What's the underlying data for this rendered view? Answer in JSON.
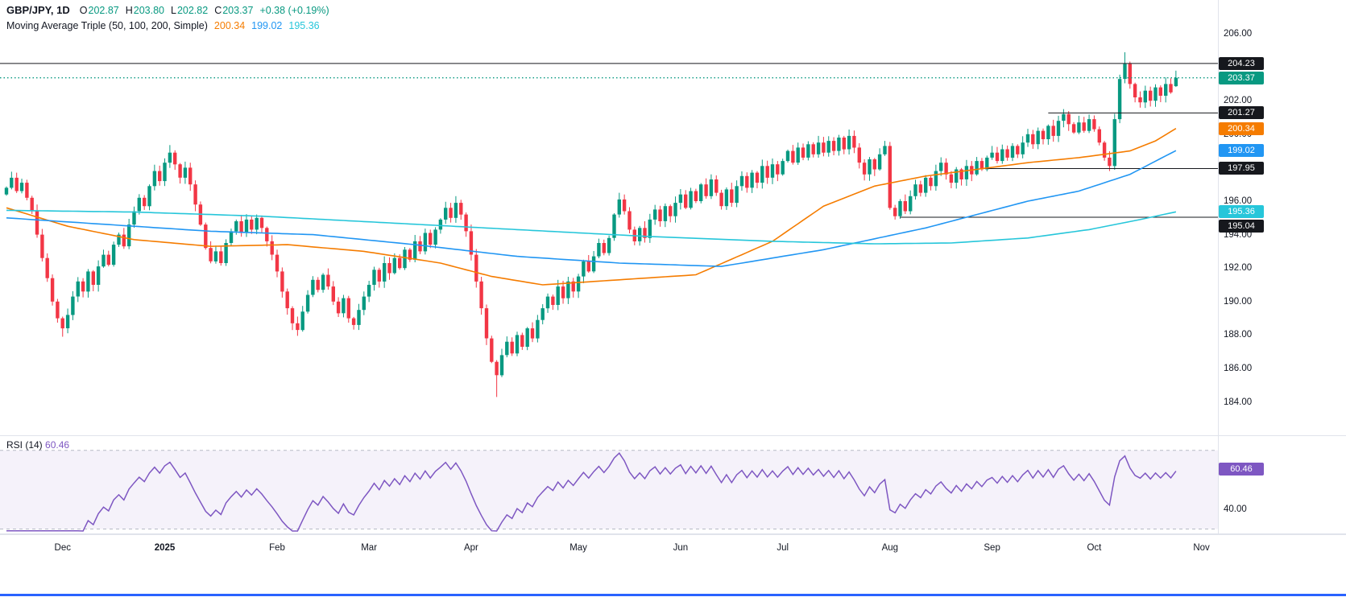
{
  "header": {
    "symbol": "GBP/JPY, 1D",
    "ohlc": {
      "open_label": "O",
      "open": "202.87",
      "high_label": "H",
      "high": "203.80",
      "low_label": "L",
      "low": "202.82",
      "close_label": "C",
      "close": "203.37",
      "change": "+0.38 (+0.19%)"
    },
    "indicator": {
      "name": "Moving Average Triple (50, 100, 200, Simple)",
      "ma50": "200.34",
      "ma100": "199.02",
      "ma200": "195.36"
    }
  },
  "rsi_panel": {
    "label": "RSI (14)",
    "value": "60.46",
    "badge": "60.46",
    "axis_tick": "40.00"
  },
  "colors": {
    "up": "#089981",
    "down": "#f23645",
    "ma50": "#f57c00",
    "ma100": "#2196f3",
    "ma200": "#26c6da",
    "rsi": "#7e57c2",
    "band_fill": "rgba(126,87,194,0.08)",
    "level": "#16181d",
    "price_line": "#089981",
    "badge_level": "#16181d",
    "badge_price": "#089981",
    "bottom_bar": "#2962ff",
    "axis_text": "#131722"
  },
  "chart_data": {
    "type": "candlestick",
    "title": "GBP/JPY daily with Moving Average Triple (50, 100, 200, Simple) and RSI (14)",
    "timeframe": "1D",
    "last_price": 203.37,
    "y_axis": {
      "ticks": [
        206,
        204,
        202,
        200,
        198,
        196,
        194,
        192,
        190,
        188,
        186,
        184
      ],
      "range": [
        184,
        206
      ],
      "step": 2
    },
    "x_axis": {
      "labels": [
        {
          "text": "Dec",
          "index": 11,
          "year": false
        },
        {
          "text": "2025",
          "index": 31,
          "year": true
        },
        {
          "text": "Feb",
          "index": 53,
          "year": false
        },
        {
          "text": "Mar",
          "index": 71,
          "year": false
        },
        {
          "text": "Apr",
          "index": 91,
          "year": false
        },
        {
          "text": "May",
          "index": 112,
          "year": false
        },
        {
          "text": "Jun",
          "index": 132,
          "year": false
        },
        {
          "text": "Jul",
          "index": 152,
          "year": false
        },
        {
          "text": "Aug",
          "index": 173,
          "year": false
        },
        {
          "text": "Sep",
          "index": 193,
          "year": false
        },
        {
          "text": "Oct",
          "index": 213,
          "year": false
        },
        {
          "text": "Nov",
          "index": 234,
          "year": false
        }
      ]
    },
    "candles": {
      "first_open": 196.4,
      "closes": [
        196.8,
        197.4,
        196.6,
        197.1,
        196.2,
        195.4,
        194.0,
        192.6,
        191.4,
        190.0,
        189.0,
        188.4,
        189.2,
        190.3,
        191.2,
        190.6,
        191.8,
        191.0,
        192.1,
        192.8,
        192.2,
        193.4,
        194.0,
        193.3,
        194.6,
        195.4,
        196.2,
        195.7,
        196.9,
        197.8,
        197.2,
        198.3,
        198.9,
        198.2,
        197.4,
        198.0,
        197.0,
        195.8,
        194.6,
        193.2,
        192.4,
        193.0,
        192.3,
        193.5,
        194.2,
        194.8,
        194.1,
        194.9,
        194.3,
        195.0,
        194.4,
        193.6,
        192.8,
        191.8,
        190.6,
        189.6,
        188.7,
        188.3,
        189.4,
        190.4,
        191.3,
        190.7,
        191.6,
        190.9,
        190.0,
        189.3,
        190.2,
        189.0,
        188.6,
        189.5,
        190.3,
        191.0,
        191.9,
        191.2,
        192.3,
        191.7,
        192.6,
        192.0,
        193.1,
        192.5,
        193.6,
        193.0,
        194.1,
        193.4,
        194.3,
        194.9,
        195.6,
        195.0,
        195.9,
        195.2,
        194.2,
        192.8,
        191.2,
        189.6,
        187.8,
        186.4,
        185.6,
        186.8,
        187.6,
        186.9,
        188.0,
        187.3,
        188.4,
        187.8,
        188.9,
        189.6,
        190.3,
        189.8,
        190.9,
        190.2,
        191.2,
        190.6,
        191.5,
        192.4,
        191.8,
        192.7,
        193.5,
        192.9,
        193.8,
        195.2,
        196.1,
        195.4,
        194.3,
        193.6,
        194.4,
        193.8,
        194.9,
        195.5,
        194.8,
        195.7,
        195.1,
        195.9,
        196.4,
        195.6,
        196.6,
        196.0,
        197.0,
        196.3,
        197.3,
        196.5,
        195.7,
        196.7,
        195.9,
        196.9,
        197.5,
        196.8,
        197.7,
        197.1,
        198.1,
        197.4,
        198.2,
        197.6,
        198.4,
        199.0,
        198.3,
        199.2,
        198.6,
        199.4,
        198.8,
        199.5,
        198.9,
        199.6,
        199.0,
        199.8,
        199.1,
        199.9,
        199.2,
        198.3,
        197.6,
        198.5,
        197.9,
        198.8,
        199.3,
        195.6,
        195.1,
        196.0,
        195.4,
        196.3,
        197.0,
        196.5,
        197.4,
        196.9,
        197.8,
        198.3,
        197.6,
        197.1,
        197.9,
        197.3,
        198.1,
        197.6,
        198.4,
        197.9,
        198.6,
        198.9,
        198.4,
        199.1,
        198.6,
        199.3,
        198.8,
        199.5,
        200.0,
        199.4,
        200.2,
        199.7,
        200.5,
        199.9,
        200.8,
        201.2,
        200.6,
        200.1,
        200.7,
        200.2,
        200.9,
        200.3,
        199.5,
        198.6,
        198.1,
        200.9,
        203.3,
        204.2,
        203.0,
        202.2,
        201.9,
        202.6,
        202.0,
        202.8,
        202.3,
        203.0,
        202.5,
        203.37
      ],
      "overrides": {
        "11": {
          "l": 187.9
        },
        "32": {
          "h": 199.35
        },
        "57": {
          "l": 187.95
        },
        "88": {
          "h": 196.3
        },
        "96": {
          "l": 184.3
        },
        "120": {
          "h": 196.5
        },
        "150": {
          "h": 198.55
        },
        "174": {
          "l": 194.9
        },
        "207": {
          "h": 201.5
        },
        "216": {
          "l": 197.8
        },
        "219": {
          "h": 204.9
        },
        "229": {
          "o": 202.87,
          "h": 203.8,
          "l": 202.82,
          "c": 203.37
        }
      }
    },
    "moving_averages": [
      {
        "period": 50,
        "current": 200.34,
        "points": [
          [
            0,
            195.6
          ],
          [
            12,
            194.5
          ],
          [
            25,
            193.7
          ],
          [
            40,
            193.3
          ],
          [
            55,
            193.4
          ],
          [
            70,
            193.0
          ],
          [
            85,
            192.3
          ],
          [
            95,
            191.5
          ],
          [
            105,
            191.0
          ],
          [
            120,
            191.3
          ],
          [
            135,
            191.6
          ],
          [
            150,
            193.6
          ],
          [
            160,
            195.7
          ],
          [
            170,
            196.9
          ],
          [
            180,
            197.5
          ],
          [
            190,
            197.9
          ],
          [
            200,
            198.3
          ],
          [
            210,
            198.6
          ],
          [
            220,
            199.0
          ],
          [
            225,
            199.6
          ],
          [
            229,
            200.34
          ]
        ]
      },
      {
        "period": 100,
        "current": 199.02,
        "points": [
          [
            0,
            195.0
          ],
          [
            20,
            194.6
          ],
          [
            40,
            194.2
          ],
          [
            60,
            194.0
          ],
          [
            80,
            193.4
          ],
          [
            100,
            192.7
          ],
          [
            120,
            192.3
          ],
          [
            140,
            192.1
          ],
          [
            160,
            193.1
          ],
          [
            180,
            194.4
          ],
          [
            200,
            196.0
          ],
          [
            210,
            196.6
          ],
          [
            220,
            197.6
          ],
          [
            229,
            199.02
          ]
        ]
      },
      {
        "period": 200,
        "current": 195.36,
        "points": [
          [
            0,
            195.45
          ],
          [
            25,
            195.35
          ],
          [
            50,
            195.1
          ],
          [
            75,
            194.7
          ],
          [
            100,
            194.3
          ],
          [
            125,
            193.9
          ],
          [
            150,
            193.6
          ],
          [
            170,
            193.45
          ],
          [
            185,
            193.5
          ],
          [
            200,
            193.8
          ],
          [
            212,
            194.3
          ],
          [
            222,
            194.9
          ],
          [
            229,
            195.36
          ]
        ]
      }
    ],
    "levels": [
      {
        "value": 204.23,
        "from_index": 0
      },
      {
        "value": 201.27,
        "from_index": 204
      },
      {
        "value": 197.95,
        "from_index": 191
      },
      {
        "value": 195.04,
        "from_index": 175
      }
    ],
    "price_badges": [
      {
        "value": 204.23,
        "kind": "level"
      },
      {
        "value": 203.37,
        "kind": "price"
      },
      {
        "value": 201.27,
        "kind": "level"
      },
      {
        "value": 200.34,
        "kind": "ma50"
      },
      {
        "value": 199.02,
        "kind": "ma100"
      },
      {
        "value": 197.95,
        "kind": "level"
      },
      {
        "value": 195.36,
        "kind": "ma200"
      },
      {
        "value": 195.04,
        "kind": "level"
      }
    ],
    "rsi": {
      "period": 14,
      "current": 60.46,
      "upper_band": 70,
      "lower_band": 30,
      "axis_ticks": [
        40
      ]
    }
  }
}
